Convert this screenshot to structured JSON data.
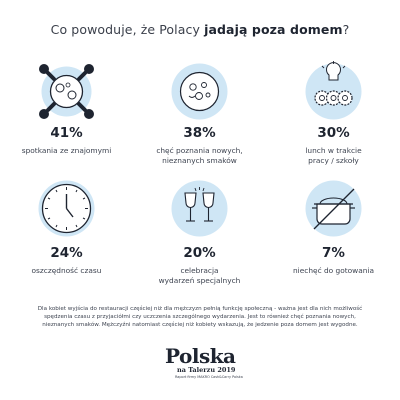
{
  "title": {
    "prefix": "Co powoduje, że Polacy ",
    "bold": "jadają poza domem",
    "suffix": "?"
  },
  "items": [
    {
      "percent": "41%",
      "line1": "spotkania ze znajomymi",
      "line2": "",
      "icon": "table-with-people-icon"
    },
    {
      "percent": "38%",
      "line1": "chęć poznania nowych,",
      "line2": "nieznanych smaków",
      "icon": "bowl-with-food-icon"
    },
    {
      "percent": "30%",
      "line1": "lunch w trakcie",
      "line2": "pracy / szkoły",
      "icon": "lightbulb-gears-icon"
    },
    {
      "percent": "24%",
      "line1": "oszczędność czasu",
      "line2": "",
      "icon": "clock-icon"
    },
    {
      "percent": "20%",
      "line1": "celebracja",
      "line2": "wydarzeń specjalnych",
      "icon": "wine-glasses-icon"
    },
    {
      "percent": "7%",
      "line1": "niechęć do gotowania",
      "line2": "",
      "icon": "crossed-pot-icon"
    }
  ],
  "description": {
    "line1": "Dla kobiet wyjścia do restauracji częściej niż dla mężczyzn pełnią funkcję społeczną - ważna jest dla nich możliwość",
    "line2": "spędzenia czasu z przyjaciółmi czy uczczenia szczególnego wydarzenia. Jest to również chęć poznania nowych,",
    "line3": "nieznanych smaków. Mężczyźni natomiast częściej niż kobiety wskazują, że jedzenie poza domem jest wygodne."
  },
  "logo": {
    "main": "Polska",
    "sub": "na Talerzu 2019",
    "tag": "Raport firmy MAKRO Cash&Carry Polska"
  },
  "colors": {
    "icon_bg": "#cfe6f5",
    "icon_stroke": "#1e2430",
    "text": "#2a2f3a"
  }
}
